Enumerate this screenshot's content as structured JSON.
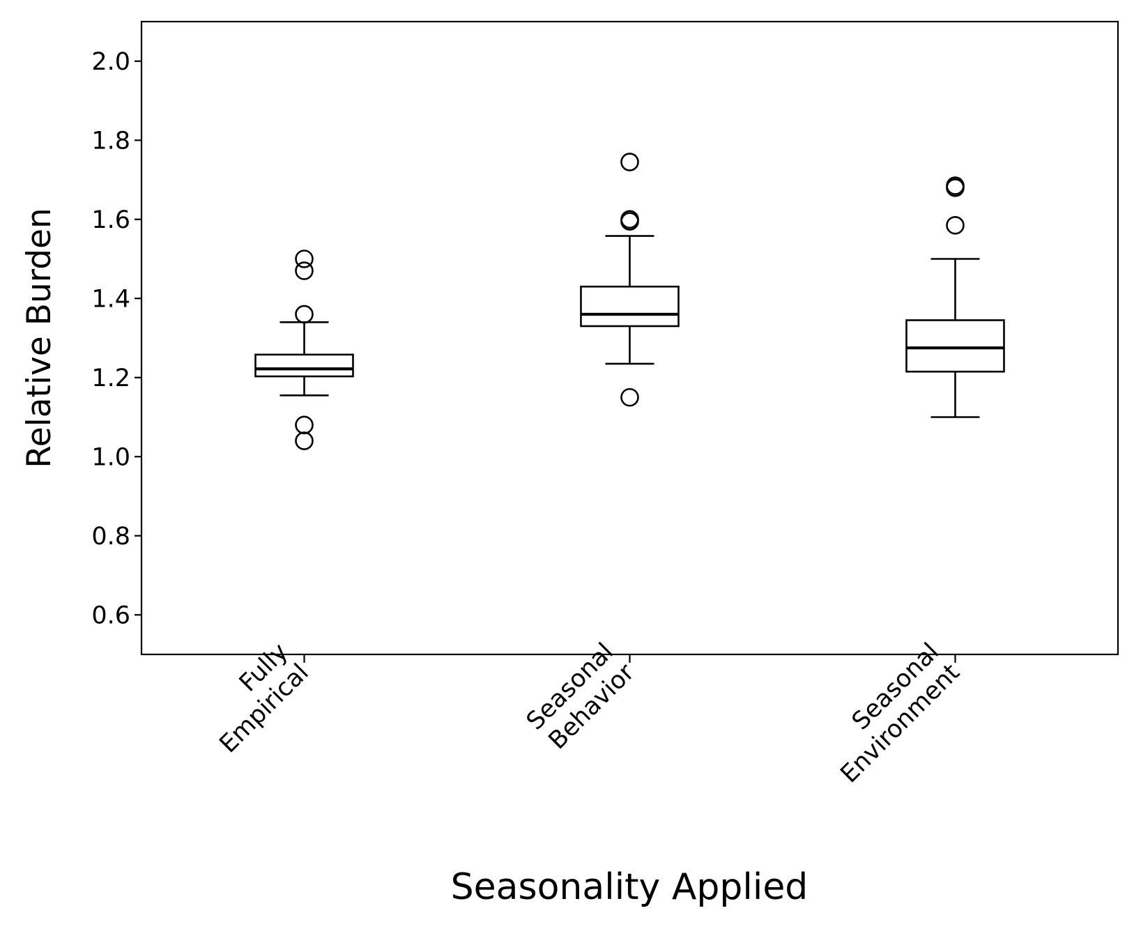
{
  "chart_data": {
    "type": "boxplot",
    "xlabel": "Seasonality Applied",
    "ylabel": "Relative Burden",
    "ylim": [
      0.5,
      2.1
    ],
    "yticks": [
      0.6,
      0.8,
      1.0,
      1.2,
      1.4,
      1.6,
      1.8,
      2.0
    ],
    "ytick_labels": [
      "0.6",
      "0.8",
      "1.0",
      "1.2",
      "1.4",
      "1.6",
      "1.8",
      "2.0"
    ],
    "grid": false,
    "categories": [
      [
        "Fully",
        "Empirical"
      ],
      [
        "Seasonal",
        "Behavior"
      ],
      [
        "Seasonal",
        "Environment"
      ]
    ],
    "boxes": [
      {
        "whisker_low": 1.155,
        "q1": 1.203,
        "median": 1.222,
        "q3": 1.258,
        "whisker_high": 1.34,
        "outliers": [
          1.04,
          1.08,
          1.36,
          1.47,
          1.5
        ]
      },
      {
        "whisker_low": 1.235,
        "q1": 1.33,
        "median": 1.36,
        "q3": 1.43,
        "whisker_high": 1.558,
        "outliers": [
          1.15,
          1.595,
          1.6,
          1.745
        ]
      },
      {
        "whisker_low": 1.1,
        "q1": 1.215,
        "median": 1.275,
        "q3": 1.345,
        "whisker_high": 1.5,
        "outliers": [
          1.585,
          1.68,
          1.685
        ]
      }
    ]
  }
}
